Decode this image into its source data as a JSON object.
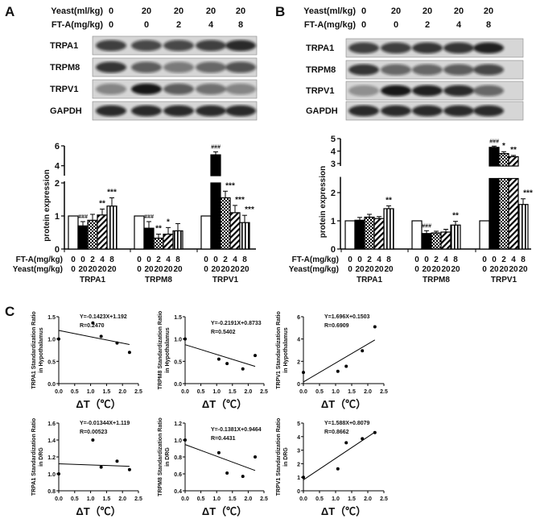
{
  "panels": {
    "A": {
      "letter": "A",
      "blot": {
        "yeast_label": "Yeast(ml/kg)",
        "fta_label": "FT-A(mg/kg)",
        "yeast_values": [
          "0",
          "20",
          "20",
          "20",
          "20"
        ],
        "fta_values": [
          "0",
          "0",
          "2",
          "4",
          "8"
        ],
        "rows": [
          "TRPA1",
          "TRPM8",
          "TRPV1",
          "GAPDH"
        ]
      }
    },
    "B": {
      "letter": "B",
      "blot": {
        "yeast_label": "Yeast(ml/kg)",
        "fta_label": "FT-A(mg/kg)",
        "yeast_values": [
          "0",
          "20",
          "20",
          "20",
          "20"
        ],
        "fta_values": [
          "0",
          "0",
          "2",
          "4",
          "8"
        ],
        "rows": [
          "TRPA1",
          "TRPM8",
          "TRPV1",
          "GAPDH"
        ]
      }
    },
    "C": {
      "letter": "C"
    }
  },
  "chart_data": [
    {
      "id": "A-bar",
      "type": "bar",
      "ylabel": "protein expression",
      "ylim_lower": [
        0,
        2
      ],
      "ylim_upper": [
        3,
        6
      ],
      "yticks": [
        0,
        1,
        2,
        4,
        6
      ],
      "row_labels": [
        "FT-A(mg/kg)",
        "Yeast(mg/kg)"
      ],
      "fta_ticks": [
        "0",
        "0",
        "2",
        "4",
        "8"
      ],
      "yeast_ticks": [
        "0",
        "20",
        "20",
        "20",
        "20"
      ],
      "patterns": [
        "white",
        "black",
        "checker",
        "diagonal",
        "vertical"
      ],
      "groups": [
        {
          "name": "TRPA1",
          "values": [
            1,
            0.7,
            0.87,
            1.03,
            1.3
          ],
          "errors": [
            0,
            0.13,
            0.18,
            0.18,
            0.25
          ],
          "annotations": [
            "",
            "###",
            "",
            "**",
            "***"
          ]
        },
        {
          "name": "TRPM8",
          "values": [
            1,
            0.63,
            0.33,
            0.45,
            0.55
          ],
          "errors": [
            0,
            0.2,
            0.12,
            0.2,
            0.22
          ],
          "annotations": [
            "",
            "###",
            "**",
            "*",
            ""
          ]
        },
        {
          "name": "TRPV1",
          "values": [
            1,
            5.1,
            1.55,
            1.1,
            0.8
          ],
          "errors": [
            0,
            0.3,
            0.2,
            0.22,
            0.22
          ],
          "annotations": [
            "",
            "###",
            "***",
            "***",
            "***"
          ]
        }
      ]
    },
    {
      "id": "B-bar",
      "type": "bar",
      "ylabel": "protein expression",
      "ylim_lower": [
        0,
        2.5
      ],
      "ylim_upper": [
        2.8,
        5
      ],
      "yticks": [
        0,
        1,
        2,
        3,
        4,
        5
      ],
      "row_labels": [
        "FT-A(mg/kg)",
        "Yeast(mg/kg)"
      ],
      "fta_ticks": [
        "0",
        "0",
        "2",
        "4",
        "8"
      ],
      "yeast_ticks": [
        "0",
        "20",
        "20",
        "20",
        "20"
      ],
      "patterns": [
        "white",
        "black",
        "checker",
        "diagonal",
        "vertical"
      ],
      "groups": [
        {
          "name": "TRPA1",
          "values": [
            1,
            1.02,
            1.13,
            1.08,
            1.43
          ],
          "errors": [
            0,
            0.1,
            0.1,
            0.07,
            0.1
          ],
          "annotations": [
            "",
            "",
            "",
            "",
            "**"
          ]
        },
        {
          "name": "TRPM8",
          "values": [
            1,
            0.55,
            0.57,
            0.6,
            0.85
          ],
          "errors": [
            0,
            0.1,
            0.06,
            0.1,
            0.13
          ],
          "annotations": [
            "",
            "###",
            "",
            "",
            "**"
          ]
        },
        {
          "name": "TRPV1",
          "values": [
            1,
            4.3,
            3.8,
            3.55,
            1.58
          ],
          "errors": [
            0,
            0.1,
            0.15,
            0.1,
            0.2
          ],
          "annotations": [
            "",
            "###",
            "*",
            "**",
            "***"
          ]
        }
      ]
    },
    {
      "id": "C1",
      "type": "scatter",
      "ylabel": [
        "TRPA1 Standardization Ratio",
        "in Hypothalamus"
      ],
      "xlabel": "ΔT（℃）",
      "equation": "Y=-0.1423X+1.192",
      "r": "R=0.2470",
      "slope": -0.1423,
      "intercept": 1.192,
      "xlim": [
        0,
        2.5
      ],
      "xticks": [
        "0.0",
        "0.5",
        "1.0",
        "1.5",
        "2.0",
        "2.5"
      ],
      "ylim": [
        0,
        1.5
      ],
      "yticks": [
        "0.0",
        "0.5",
        "1.0",
        "1.5"
      ],
      "x": [
        0,
        1.07,
        1.33,
        1.83,
        2.22
      ],
      "y": [
        1.0,
        1.36,
        1.06,
        0.91,
        0.7
      ]
    },
    {
      "id": "C2",
      "type": "scatter",
      "ylabel": [
        "TRPM8 Standardization Ratio",
        "in Hypothalamus"
      ],
      "xlabel": "ΔT（℃）",
      "equation": "Y=-0.2191X+0.8733",
      "r": "R=0.5402",
      "slope": -0.2191,
      "intercept": 0.8733,
      "xlim": [
        0,
        2.5
      ],
      "xticks": [
        "0.0",
        "0.5",
        "1.0",
        "1.5",
        "2.0",
        "2.5"
      ],
      "ylim": [
        0,
        1.5
      ],
      "yticks": [
        "0.0",
        "0.5",
        "1.0",
        "1.5"
      ],
      "x": [
        0,
        1.07,
        1.33,
        1.83,
        2.22
      ],
      "y": [
        1.0,
        0.55,
        0.45,
        0.33,
        0.63
      ]
    },
    {
      "id": "C3",
      "type": "scatter",
      "ylabel": [
        "TRPV1 Standardization Ratio",
        "in Hypothalamus"
      ],
      "xlabel": "ΔT（℃）",
      "equation": "Y=1.696X+0.1503",
      "r": "R=0.6909",
      "slope": 1.696,
      "intercept": 0.1503,
      "xlim": [
        0,
        2.5
      ],
      "xticks": [
        "0.0",
        "0.5",
        "1.0",
        "1.5",
        "2.0",
        "2.5"
      ],
      "ylim": [
        0,
        6
      ],
      "yticks": [
        "0",
        "2",
        "4",
        "6"
      ],
      "x": [
        0,
        1.07,
        1.33,
        1.83,
        2.22
      ],
      "y": [
        1.0,
        1.1,
        1.55,
        2.95,
        5.1
      ]
    },
    {
      "id": "C4",
      "type": "scatter",
      "ylabel": [
        "TRPA1 Standardization Ratio",
        "in DRG"
      ],
      "xlabel": "ΔT（℃）",
      "equation": "Y=-0.01344X+1.119",
      "r": "R=0.00523",
      "slope": -0.01344,
      "intercept": 1.119,
      "xlim": [
        0,
        2.5
      ],
      "xticks": [
        "0.0",
        "0.5",
        "1.0",
        "1.5",
        "2.0",
        "2.5"
      ],
      "ylim": [
        0.8,
        1.6
      ],
      "yticks": [
        "0.8",
        "1.0",
        "1.2",
        "1.4",
        "1.6"
      ],
      "x": [
        0,
        1.07,
        1.33,
        1.83,
        2.22
      ],
      "y": [
        1.0,
        1.4,
        1.08,
        1.15,
        1.05
      ]
    },
    {
      "id": "C5",
      "type": "scatter",
      "ylabel": [
        "TRPM8 Standardization Ratio",
        "in DRG"
      ],
      "xlabel": "ΔT（℃）",
      "equation": "Y=-0.1381X+0.9464",
      "r": "R=0.4431",
      "slope": -0.1381,
      "intercept": 0.9464,
      "xlim": [
        0,
        2.5
      ],
      "xticks": [
        "0.0",
        "0.5",
        "1.0",
        "1.5",
        "2.0",
        "2.5"
      ],
      "ylim": [
        0.4,
        1.2
      ],
      "yticks": [
        "0.4",
        "0.6",
        "0.8",
        "1.0",
        "1.2"
      ],
      "x": [
        0,
        1.07,
        1.33,
        1.83,
        2.22
      ],
      "y": [
        1.0,
        0.85,
        0.61,
        0.57,
        0.8
      ]
    },
    {
      "id": "C6",
      "type": "scatter",
      "ylabel": [
        "TRPV1 Standardization Ratio",
        "in DRG"
      ],
      "xlabel": "ΔT（℃）",
      "equation": "Y=1.588X+0.8079",
      "r": "R=0.8662",
      "slope": 1.588,
      "intercept": 0.8079,
      "xlim": [
        0,
        2.5
      ],
      "xticks": [
        "0.0",
        "0.5",
        "1.0",
        "1.5",
        "2.0",
        "2.5"
      ],
      "ylim": [
        0,
        5
      ],
      "yticks": [
        "0",
        "1",
        "2",
        "3",
        "4",
        "5"
      ],
      "x": [
        0,
        1.07,
        1.33,
        1.83,
        2.22
      ],
      "y": [
        1.0,
        1.62,
        3.55,
        3.85,
        4.3
      ]
    }
  ]
}
